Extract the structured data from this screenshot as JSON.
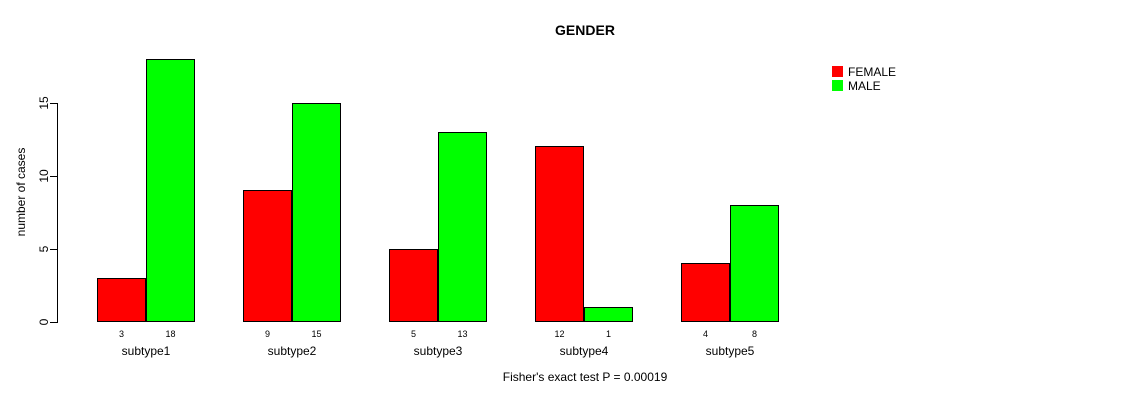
{
  "chart_data": {
    "type": "bar",
    "title": "GENDER",
    "xlabel": "",
    "ylabel": "number of cases",
    "categories": [
      "subtype1",
      "subtype2",
      "subtype3",
      "subtype4",
      "subtype5"
    ],
    "series": [
      {
        "name": "FEMALE",
        "color": "#ff0000",
        "values": [
          3,
          9,
          5,
          12,
          4
        ]
      },
      {
        "name": "MALE",
        "color": "#00ff00",
        "values": [
          18,
          15,
          13,
          1,
          8
        ]
      }
    ],
    "yticks": [
      0,
      5,
      10,
      15
    ],
    "ylim": [
      0,
      18
    ],
    "grid": false,
    "legend_position": "top-right",
    "bar_value_labels_shown": true,
    "footnote": "Fisher's exact test P = 0.00019",
    "background_color": "#ffffff",
    "axis_color": "#000000"
  }
}
